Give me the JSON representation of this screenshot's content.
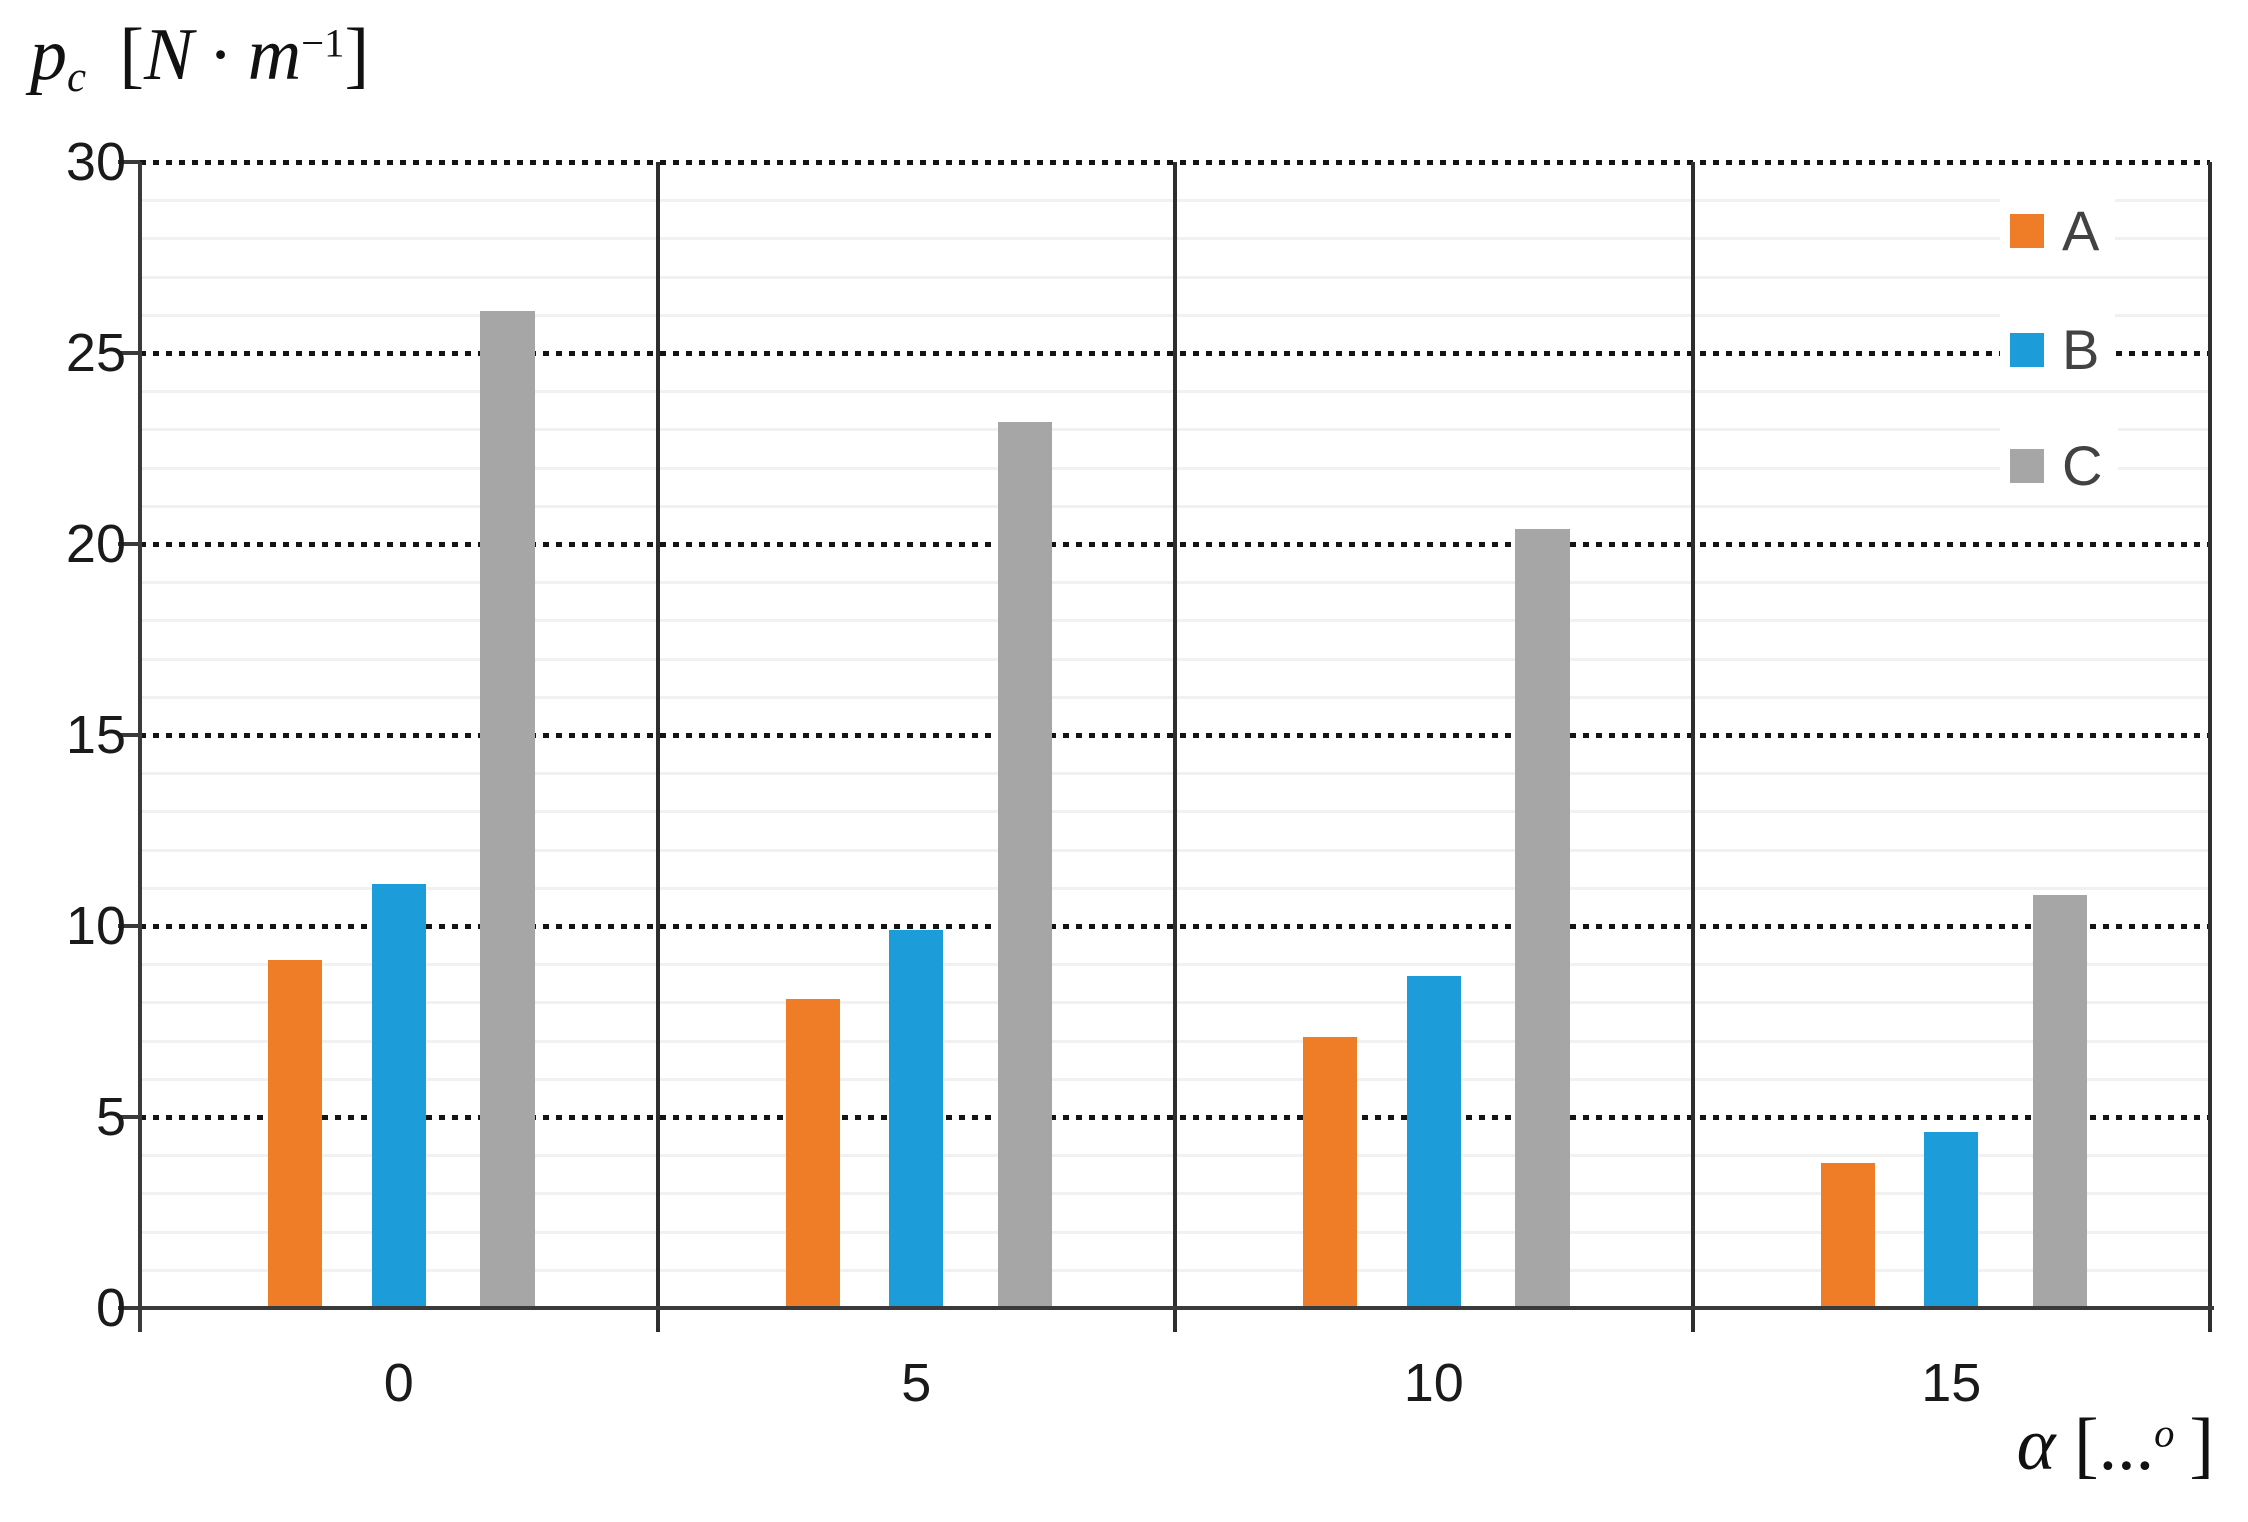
{
  "chart_data": {
    "type": "bar",
    "title": "",
    "ylabel": "pc [N · m⁻¹]",
    "xlabel": "α [...°]",
    "categories": [
      "0",
      "5",
      "10",
      "15"
    ],
    "series": [
      {
        "name": "A",
        "color": "#EF7D28",
        "values": [
          9.1,
          8.1,
          7.1,
          3.8
        ]
      },
      {
        "name": "B",
        "color": "#1C9CD9",
        "values": [
          11.1,
          9.9,
          8.7,
          4.6
        ]
      },
      {
        "name": "C",
        "color": "#A6A6A6",
        "values": [
          26.1,
          23.2,
          20.4,
          10.8
        ]
      }
    ],
    "ylim": [
      0,
      30
    ],
    "yticks": [
      0,
      5,
      10,
      15,
      20,
      25,
      30
    ],
    "minor_gridline_step": 1,
    "grid": {
      "major": "black dotted",
      "minor": "light gray solid"
    },
    "legend_position": "top-right inside plot"
  },
  "titles": {
    "y": {
      "base": "p",
      "sub": "c",
      "open": "[",
      "unit_n": "N",
      "dot": "·",
      "unit_m": "m",
      "exp": "−1",
      "close": "]"
    },
    "x": {
      "alpha": "α",
      "open": "[",
      "dots": "...",
      "deg": "o",
      "close": "]"
    }
  },
  "colors": {
    "axis": "#3a3a3a",
    "divider": "#2e2e2e",
    "major_gridline": "#141414",
    "minor_gridline": "#f1f1f1",
    "tick_label": "#1a1a1a",
    "legend_text": "#424242",
    "background": "#ffffff"
  }
}
